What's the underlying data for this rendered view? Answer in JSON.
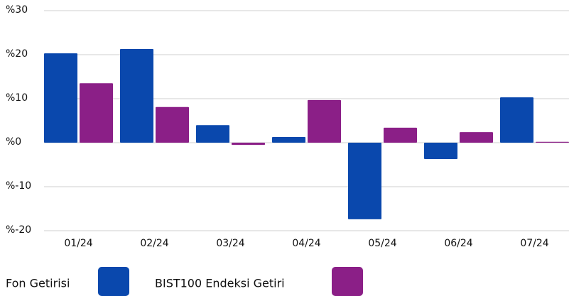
{
  "chart_data": {
    "type": "bar",
    "categories": [
      "01/24",
      "02/24",
      "03/24",
      "04/24",
      "05/24",
      "06/24",
      "07/24"
    ],
    "series": [
      {
        "name": "Fon Getirisi",
        "color": "#0a48ad",
        "values": [
          20.3,
          21.3,
          4.0,
          1.3,
          -17.4,
          -3.7,
          10.3
        ]
      },
      {
        "name": "BIST100 Endeksi Getiri",
        "color": "#8b1f87",
        "values": [
          13.5,
          8.1,
          -0.5,
          9.7,
          3.4,
          2.4,
          0.2
        ]
      }
    ],
    "ylim": [
      -20,
      30
    ],
    "yticks": [
      {
        "value": -20,
        "label": "%-20"
      },
      {
        "value": -10,
        "label": "%-10"
      },
      {
        "value": 0,
        "label": "%0"
      },
      {
        "value": 10,
        "label": "%10"
      },
      {
        "value": 20,
        "label": "%20"
      },
      {
        "value": 30,
        "label": "%30"
      }
    ],
    "grid": true
  }
}
